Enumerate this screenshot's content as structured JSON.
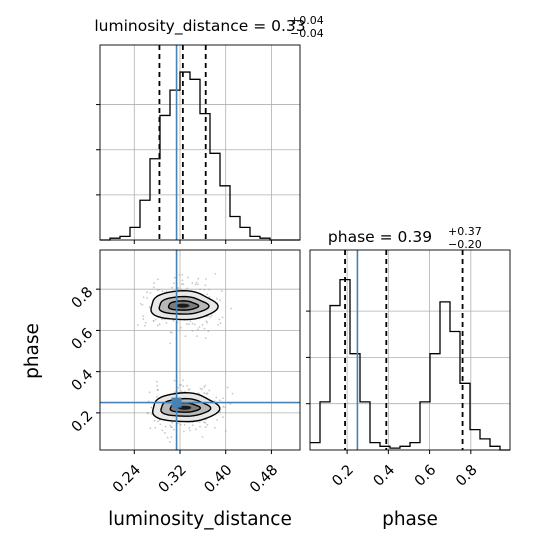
{
  "chart_data": [
    {
      "type": "histogram",
      "panel": "luminosity_distance marginal",
      "title": {
        "param": "luminosity_distance",
        "median": "0.33",
        "plus": "+0.04",
        "minus": "−0.04"
      },
      "x_range": [
        0.18,
        0.53
      ],
      "bins": [
        0.18,
        0.1975,
        0.215,
        0.2325,
        0.25,
        0.2675,
        0.285,
        0.3025,
        0.32,
        0.3375,
        0.355,
        0.3725,
        0.39,
        0.4075,
        0.425,
        0.4425,
        0.46,
        0.4775,
        0.495,
        0.5125,
        0.53
      ],
      "counts": [
        0,
        0.01,
        0.02,
        0.07,
        0.22,
        0.45,
        0.69,
        0.83,
        0.93,
        0.89,
        0.7,
        0.48,
        0.3,
        0.13,
        0.07,
        0.02,
        0.01,
        0,
        0,
        0
      ],
      "y_max": 1.0,
      "quantile_lines": [
        0.284,
        0.325,
        0.365
      ],
      "truth": 0.314,
      "grid": true
    },
    {
      "type": "contour",
      "panel": "phase vs luminosity_distance",
      "x_range": [
        0.18,
        0.53
      ],
      "y_range": [
        0.02,
        0.99
      ],
      "modes": [
        {
          "x": 0.325,
          "y": 0.72,
          "levels_dx": [
            0.026,
            0.043,
            0.058
          ],
          "levels_dy": [
            0.045,
            0.085,
            0.14
          ]
        },
        {
          "x": 0.328,
          "y": 0.225,
          "levels_dx": [
            0.026,
            0.043,
            0.058
          ],
          "levels_dy": [
            0.045,
            0.085,
            0.14
          ]
        }
      ],
      "truth": {
        "x": 0.314,
        "y": 0.25
      },
      "x_ticks": [
        "0.24",
        "0.32",
        "0.40",
        "0.48"
      ],
      "y_ticks": [
        "0.2",
        "0.4",
        "0.6",
        "0.8"
      ],
      "xlabel": "luminosity_distance",
      "ylabel": "phase",
      "grid": true
    },
    {
      "type": "histogram",
      "panel": "phase marginal",
      "title": {
        "param": "phase",
        "median": "0.39",
        "plus": "+0.37",
        "minus": "−0.20"
      },
      "x_range": [
        0.02,
        0.99
      ],
      "bins": [
        0.02,
        0.0685,
        0.117,
        0.1655,
        0.214,
        0.2625,
        0.311,
        0.3595,
        0.408,
        0.4565,
        0.505,
        0.5535,
        0.602,
        0.6505,
        0.699,
        0.7475,
        0.796,
        0.8445,
        0.893,
        0.9415,
        0.99
      ],
      "counts": [
        0.04,
        0.26,
        0.78,
        0.92,
        0.52,
        0.26,
        0.04,
        0.02,
        0.01,
        0.02,
        0.04,
        0.26,
        0.52,
        0.8,
        0.64,
        0.36,
        0.11,
        0.06,
        0.02,
        0.0
      ],
      "y_max": 1.0,
      "quantile_lines": [
        0.19,
        0.39,
        0.76
      ],
      "truth": 0.25,
      "x_ticks": [
        "0.2",
        "0.4",
        "0.6",
        "0.8"
      ],
      "xlabel": "phase",
      "grid": true
    }
  ]
}
